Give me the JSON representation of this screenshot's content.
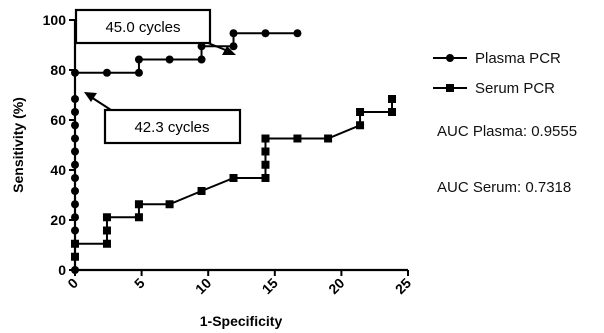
{
  "chart_data": {
    "type": "line",
    "title": "",
    "xlabel": "1-Specificity",
    "ylabel": "Sensitivity (%)",
    "xlim": [
      0,
      25
    ],
    "ylim": [
      0,
      100
    ],
    "xticks": [
      "0",
      "5",
      "10",
      "15",
      "20",
      "25"
    ],
    "yticks": [
      "0",
      "20",
      "40",
      "60",
      "80",
      "100"
    ],
    "grid": false,
    "legend_position": "right",
    "series": [
      {
        "name": "Plasma PCR",
        "marker": "circle",
        "x": [
          0,
          0,
          0,
          0,
          0,
          0,
          0,
          0,
          0,
          0,
          0,
          0,
          0,
          0,
          0,
          2.4,
          4.8,
          4.8,
          7.1,
          9.5,
          9.5,
          11.9,
          11.9,
          14.3,
          16.7
        ],
        "y": [
          0,
          5.3,
          10.5,
          15.8,
          21.1,
          26.3,
          31.6,
          36.8,
          42.1,
          47.4,
          52.6,
          57.9,
          63.2,
          68.4,
          78.9,
          78.9,
          78.9,
          84.2,
          84.2,
          84.2,
          89.5,
          89.5,
          94.7,
          94.7,
          94.7
        ]
      },
      {
        "name": "Serum PCR",
        "marker": "square",
        "x": [
          0,
          0,
          2.4,
          2.4,
          2.4,
          4.8,
          4.8,
          7.1,
          9.5,
          11.9,
          14.3,
          14.3,
          14.3,
          14.3,
          16.7,
          19.0,
          21.4,
          21.4,
          23.8,
          23.8
        ],
        "y": [
          5.3,
          10.5,
          10.5,
          15.8,
          21.1,
          21.1,
          26.3,
          26.3,
          31.6,
          36.8,
          36.8,
          42.1,
          47.4,
          52.6,
          52.6,
          52.6,
          57.9,
          63.2,
          63.2,
          68.4
        ]
      }
    ],
    "annotations": [
      {
        "text": "45.0 cycles",
        "x": 11.9,
        "y": 94.7
      },
      {
        "text": "42.3 cycles",
        "x": 0,
        "y": 78.9
      }
    ],
    "notes": [
      "AUC Plasma: 0.9555",
      "AUC Serum: 0.7318"
    ]
  }
}
